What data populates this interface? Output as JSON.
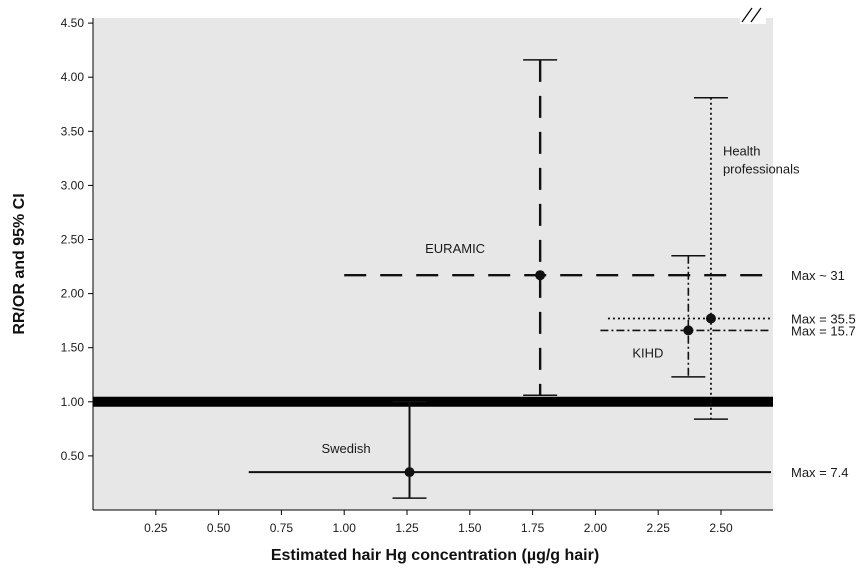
{
  "chart_data": {
    "type": "errorbar",
    "xlabel": "Estimated hair Hg concentration (µg/g hair)",
    "ylabel": "RR/OR and 95% CI",
    "xlim": [
      0,
      2.72
    ],
    "ylim": [
      0,
      4.5
    ],
    "x_ticks": [
      "0.25",
      "0.50",
      "0.75",
      "1.00",
      "1.25",
      "1.50",
      "1.75",
      "2.00",
      "2.25",
      "2.50"
    ],
    "y_ticks": [
      "0.50",
      "1.00",
      "1.50",
      "2.00",
      "2.50",
      "3.00",
      "3.50",
      "4.00",
      "4.50"
    ],
    "reference_line": 1.0,
    "axis_break": "top-right",
    "series": [
      {
        "name": "EURAMIC",
        "label_lines": [
          "EURAMIC"
        ],
        "style": "dashed",
        "x": 1.78,
        "y": 2.17,
        "ci_x": [
          1.0,
          2.72
        ],
        "ci_y": [
          1.06,
          4.16
        ],
        "max_note": "Max ~ 31"
      },
      {
        "name": "Health professionals",
        "label_lines": [
          "Health",
          "professionals"
        ],
        "style": "dotted",
        "x": 2.46,
        "y": 1.77,
        "ci_x": [
          2.05,
          2.72
        ],
        "ci_y": [
          0.84,
          3.81
        ],
        "max_note": "Max = 35.5"
      },
      {
        "name": "KIHD",
        "label_lines": [
          "KIHD"
        ],
        "style": "dashdot",
        "x": 2.37,
        "y": 1.66,
        "ci_x": [
          2.02,
          2.72
        ],
        "ci_y": [
          1.23,
          2.35
        ],
        "max_note": "Max = 15.7"
      },
      {
        "name": "Swedish",
        "label_lines": [
          "Swedish"
        ],
        "style": "solid",
        "x": 1.26,
        "y": 0.35,
        "ci_x": [
          0.62,
          2.72
        ],
        "ci_y": [
          0.11,
          1.0
        ],
        "max_note": "Max = 7.4"
      }
    ]
  }
}
